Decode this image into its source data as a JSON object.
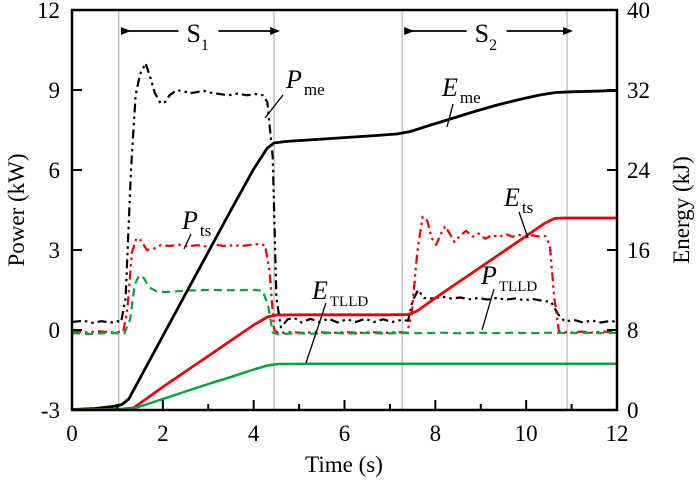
{
  "figure": {
    "xlabel": "Time (s)",
    "ylabel_left": "Power (kW)",
    "ylabel_right": "Energy (kJ)"
  },
  "colors": {
    "black": "#000000",
    "red": "#e8000d",
    "green": "#00a43c",
    "stage_line_gray": "#b5b5b5"
  },
  "chart_data": {
    "type": "line",
    "title": "",
    "xlabel": "Time (s)",
    "ylabel_left": "Power (kW)",
    "ylabel_right": "Energy (kJ)",
    "x_range": [
      0,
      12
    ],
    "power_range": [
      -3,
      12
    ],
    "energy_range": [
      0,
      40
    ],
    "x_ticks": [
      0,
      2,
      4,
      6,
      8,
      10,
      12
    ],
    "x_minor_ticks": [
      1,
      3,
      5,
      7,
      9,
      11
    ],
    "power_ticks": [
      -3,
      0,
      3,
      6,
      9,
      12
    ],
    "energy_ticks": [
      0,
      8,
      16,
      24,
      32,
      40
    ],
    "grid": "vertical-stage-lines-only",
    "legend": "inline-curve-labels",
    "stage_lines_s": [
      1.03,
      4.45,
      7.27,
      10.9
    ],
    "stages": [
      {
        "main": "S",
        "sub": "1",
        "from": 1.03,
        "to": 4.45
      },
      {
        "main": "S",
        "sub": "2",
        "from": 7.27,
        "to": 10.9
      }
    ],
    "series": [
      {
        "id": "pme",
        "name": "P_me",
        "main": "P",
        "sub": "me",
        "axis": "power",
        "color": "#000000",
        "style": "dashdotdot",
        "width": 2.2,
        "points": [
          [
            0,
            0.3
          ],
          [
            0.25,
            0.35
          ],
          [
            0.45,
            0.27
          ],
          [
            0.65,
            0.33
          ],
          [
            0.85,
            0.28
          ],
          [
            1.0,
            0.33
          ],
          [
            1.08,
            0.3
          ],
          [
            1.18,
            1.2
          ],
          [
            1.3,
            6.0
          ],
          [
            1.4,
            8.8
          ],
          [
            1.5,
            9.6
          ],
          [
            1.62,
            10.0
          ],
          [
            1.72,
            9.5
          ],
          [
            1.82,
            8.9
          ],
          [
            1.95,
            8.5
          ],
          [
            2.05,
            8.55
          ],
          [
            2.15,
            8.8
          ],
          [
            2.3,
            9.0
          ],
          [
            2.45,
            8.95
          ],
          [
            2.6,
            8.88
          ],
          [
            2.75,
            8.92
          ],
          [
            2.9,
            8.97
          ],
          [
            3.05,
            8.9
          ],
          [
            3.25,
            8.85
          ],
          [
            3.45,
            8.8
          ],
          [
            3.65,
            8.87
          ],
          [
            3.85,
            8.8
          ],
          [
            4.05,
            8.85
          ],
          [
            4.2,
            8.8
          ],
          [
            4.3,
            8.55
          ],
          [
            4.42,
            6.5
          ],
          [
            4.5,
            1.2
          ],
          [
            4.6,
            0.1
          ],
          [
            4.75,
            0.4
          ],
          [
            4.9,
            0.45
          ],
          [
            5.05,
            0.28
          ],
          [
            5.25,
            0.42
          ],
          [
            5.45,
            0.3
          ],
          [
            5.65,
            0.42
          ],
          [
            5.85,
            0.28
          ],
          [
            6.05,
            0.4
          ],
          [
            6.25,
            0.3
          ],
          [
            6.45,
            0.42
          ],
          [
            6.65,
            0.3
          ],
          [
            6.85,
            0.4
          ],
          [
            7.05,
            0.3
          ],
          [
            7.25,
            0.38
          ],
          [
            7.4,
            0.35
          ],
          [
            7.5,
            1.1
          ],
          [
            7.62,
            1.5
          ],
          [
            7.75,
            1.2
          ],
          [
            7.95,
            1.18
          ],
          [
            8.15,
            1.25
          ],
          [
            8.35,
            1.18
          ],
          [
            8.55,
            1.22
          ],
          [
            8.75,
            1.15
          ],
          [
            8.95,
            1.2
          ],
          [
            9.15,
            1.14
          ],
          [
            9.35,
            1.2
          ],
          [
            9.55,
            1.14
          ],
          [
            9.75,
            1.18
          ],
          [
            9.95,
            1.12
          ],
          [
            10.15,
            1.16
          ],
          [
            10.35,
            1.1
          ],
          [
            10.55,
            1.05
          ],
          [
            10.7,
            0.6
          ],
          [
            10.85,
            0.32
          ],
          [
            11.05,
            0.38
          ],
          [
            11.25,
            0.28
          ],
          [
            11.45,
            0.36
          ],
          [
            11.65,
            0.28
          ],
          [
            11.85,
            0.34
          ],
          [
            12,
            0.3
          ]
        ]
      },
      {
        "id": "pts",
        "name": "P_ts",
        "main": "P",
        "sub": "ts",
        "axis": "power",
        "color": "#e8000d",
        "style": "dashdotdot",
        "width": 2.2,
        "points": [
          [
            0,
            -0.05
          ],
          [
            0.3,
            -0.09
          ],
          [
            0.6,
            -0.05
          ],
          [
            0.9,
            -0.09
          ],
          [
            1.13,
            -0.06
          ],
          [
            1.22,
            0.8
          ],
          [
            1.32,
            2.9
          ],
          [
            1.42,
            3.45
          ],
          [
            1.52,
            3.35
          ],
          [
            1.65,
            3.0
          ],
          [
            1.8,
            3.05
          ],
          [
            1.95,
            3.18
          ],
          [
            2.15,
            3.15
          ],
          [
            2.35,
            3.2
          ],
          [
            2.55,
            3.14
          ],
          [
            2.75,
            3.18
          ],
          [
            2.95,
            3.14
          ],
          [
            3.15,
            3.2
          ],
          [
            3.35,
            3.15
          ],
          [
            3.55,
            3.18
          ],
          [
            3.75,
            3.15
          ],
          [
            3.95,
            3.2
          ],
          [
            4.1,
            3.22
          ],
          [
            4.25,
            3.18
          ],
          [
            4.35,
            2.2
          ],
          [
            4.45,
            0.0
          ],
          [
            4.55,
            -0.12
          ],
          [
            4.8,
            -0.08
          ],
          [
            5.1,
            -0.11
          ],
          [
            5.4,
            -0.08
          ],
          [
            5.7,
            -0.11
          ],
          [
            6.0,
            -0.08
          ],
          [
            6.3,
            -0.11
          ],
          [
            6.6,
            -0.08
          ],
          [
            6.9,
            -0.11
          ],
          [
            7.15,
            -0.08
          ],
          [
            7.38,
            -0.1
          ],
          [
            7.48,
            0.6
          ],
          [
            7.6,
            2.9
          ],
          [
            7.72,
            4.25
          ],
          [
            7.82,
            4.1
          ],
          [
            7.92,
            3.45
          ],
          [
            8.02,
            3.2
          ],
          [
            8.12,
            3.6
          ],
          [
            8.22,
            3.9
          ],
          [
            8.32,
            3.6
          ],
          [
            8.42,
            3.3
          ],
          [
            8.55,
            3.55
          ],
          [
            8.68,
            3.72
          ],
          [
            8.82,
            3.5
          ],
          [
            8.95,
            3.62
          ],
          [
            9.1,
            3.42
          ],
          [
            9.25,
            3.56
          ],
          [
            9.4,
            3.48
          ],
          [
            9.55,
            3.6
          ],
          [
            9.7,
            3.5
          ],
          [
            9.85,
            3.56
          ],
          [
            10.0,
            3.48
          ],
          [
            10.15,
            3.55
          ],
          [
            10.3,
            3.5
          ],
          [
            10.42,
            3.52
          ],
          [
            10.52,
            3.2
          ],
          [
            10.62,
            1.2
          ],
          [
            10.72,
            -0.05
          ],
          [
            10.95,
            -0.1
          ],
          [
            11.2,
            -0.06
          ],
          [
            11.45,
            -0.1
          ],
          [
            11.7,
            -0.06
          ],
          [
            11.95,
            -0.09
          ],
          [
            12,
            -0.08
          ]
        ]
      },
      {
        "id": "ptlld",
        "name": "P_TLLD",
        "main": "P",
        "sub": "TLLD",
        "axis": "power",
        "color": "#00a43c",
        "style": "dashed",
        "width": 2.2,
        "points": [
          [
            0,
            -0.12
          ],
          [
            0.4,
            -0.15
          ],
          [
            0.8,
            -0.11
          ],
          [
            1.15,
            -0.14
          ],
          [
            1.28,
            0.4
          ],
          [
            1.38,
            1.7
          ],
          [
            1.48,
            2.05
          ],
          [
            1.58,
            1.95
          ],
          [
            1.7,
            1.6
          ],
          [
            1.85,
            1.46
          ],
          [
            2.05,
            1.42
          ],
          [
            2.3,
            1.45
          ],
          [
            2.6,
            1.48
          ],
          [
            2.9,
            1.5
          ],
          [
            3.2,
            1.5
          ],
          [
            3.5,
            1.49
          ],
          [
            3.8,
            1.5
          ],
          [
            4.05,
            1.5
          ],
          [
            4.2,
            1.47
          ],
          [
            4.32,
            0.9
          ],
          [
            4.42,
            -0.1
          ],
          [
            4.55,
            -0.16
          ],
          [
            4.9,
            -0.12
          ],
          [
            5.3,
            -0.14
          ],
          [
            5.7,
            -0.11
          ],
          [
            6.1,
            -0.13
          ],
          [
            6.5,
            -0.11
          ],
          [
            6.9,
            -0.13
          ],
          [
            7.3,
            -0.11
          ],
          [
            7.7,
            -0.12
          ],
          [
            8.1,
            -0.1
          ],
          [
            8.5,
            -0.12
          ],
          [
            8.9,
            -0.1
          ],
          [
            9.3,
            -0.12
          ],
          [
            9.7,
            -0.1
          ],
          [
            10.1,
            -0.12
          ],
          [
            10.5,
            -0.1
          ],
          [
            10.9,
            -0.12
          ],
          [
            11.3,
            -0.1
          ],
          [
            11.7,
            -0.12
          ],
          [
            12,
            -0.11
          ]
        ]
      },
      {
        "id": "eme",
        "name": "E_me",
        "main": "E",
        "sub": "me",
        "axis": "energy",
        "color": "#000000",
        "style": "solid",
        "width": 2.8,
        "points": [
          [
            0,
            0.05
          ],
          [
            0.5,
            0.15
          ],
          [
            0.9,
            0.35
          ],
          [
            1.1,
            0.55
          ],
          [
            1.25,
            1.1
          ],
          [
            1.5,
            3.2
          ],
          [
            2.0,
            7.4
          ],
          [
            2.5,
            11.6
          ],
          [
            3.0,
            15.8
          ],
          [
            3.5,
            20.0
          ],
          [
            4.0,
            24.1
          ],
          [
            4.3,
            26.2
          ],
          [
            4.45,
            26.7
          ],
          [
            4.7,
            26.85
          ],
          [
            5.2,
            27.0
          ],
          [
            5.7,
            27.15
          ],
          [
            6.2,
            27.3
          ],
          [
            6.7,
            27.45
          ],
          [
            7.15,
            27.6
          ],
          [
            7.45,
            27.85
          ],
          [
            7.9,
            28.5
          ],
          [
            8.4,
            29.2
          ],
          [
            8.9,
            29.9
          ],
          [
            9.4,
            30.55
          ],
          [
            9.9,
            31.1
          ],
          [
            10.3,
            31.5
          ],
          [
            10.65,
            31.75
          ],
          [
            11.0,
            31.82
          ],
          [
            11.5,
            31.88
          ],
          [
            12,
            31.95
          ]
        ]
      },
      {
        "id": "ets",
        "name": "E_ts",
        "main": "E",
        "sub": "ts",
        "axis": "energy",
        "color": "#e8000d",
        "style": "solid",
        "width": 2.8,
        "points": [
          [
            0,
            0.02
          ],
          [
            0.6,
            0.05
          ],
          [
            1.1,
            0.1
          ],
          [
            1.35,
            0.2
          ],
          [
            1.6,
            1.0
          ],
          [
            2.0,
            2.3
          ],
          [
            2.5,
            3.85
          ],
          [
            3.0,
            5.4
          ],
          [
            3.5,
            6.95
          ],
          [
            4.0,
            8.5
          ],
          [
            4.3,
            9.3
          ],
          [
            4.5,
            9.5
          ],
          [
            5.0,
            9.52
          ],
          [
            5.5,
            9.52
          ],
          [
            6.0,
            9.52
          ],
          [
            6.5,
            9.52
          ],
          [
            7.0,
            9.52
          ],
          [
            7.4,
            9.55
          ],
          [
            7.6,
            9.9
          ],
          [
            8.0,
            11.2
          ],
          [
            8.5,
            12.75
          ],
          [
            9.0,
            14.3
          ],
          [
            9.5,
            15.85
          ],
          [
            10.0,
            17.4
          ],
          [
            10.4,
            18.65
          ],
          [
            10.62,
            19.15
          ],
          [
            10.8,
            19.2
          ],
          [
            11.2,
            19.2
          ],
          [
            11.6,
            19.2
          ],
          [
            12,
            19.2
          ]
        ]
      },
      {
        "id": "etlld",
        "name": "E_TLLD",
        "main": "E",
        "sub": "TLLD",
        "axis": "energy",
        "color": "#00a43c",
        "style": "solid",
        "width": 2.5,
        "points": [
          [
            0,
            0.02
          ],
          [
            0.6,
            0.04
          ],
          [
            1.1,
            0.08
          ],
          [
            1.35,
            0.15
          ],
          [
            1.6,
            0.5
          ],
          [
            2.0,
            1.1
          ],
          [
            2.5,
            1.85
          ],
          [
            3.0,
            2.6
          ],
          [
            3.5,
            3.3
          ],
          [
            4.0,
            4.05
          ],
          [
            4.3,
            4.45
          ],
          [
            4.55,
            4.6
          ],
          [
            5.5,
            4.62
          ],
          [
            6.5,
            4.62
          ],
          [
            7.5,
            4.62
          ],
          [
            8.5,
            4.62
          ],
          [
            9.5,
            4.62
          ],
          [
            10.5,
            4.62
          ],
          [
            11.5,
            4.62
          ],
          [
            12,
            4.62
          ]
        ]
      }
    ],
    "annotations": [
      {
        "id": "pme",
        "main": "P",
        "sub": "me",
        "x": 286,
        "y": 88,
        "leader": [
          [
            283,
            95
          ],
          [
            265,
            118
          ]
        ]
      },
      {
        "id": "eme",
        "main": "E",
        "sub": "me",
        "x": 442,
        "y": 96,
        "leader": [
          [
            453,
            104
          ],
          [
            447,
            127
          ]
        ]
      },
      {
        "id": "pts",
        "main": "P",
        "sub": "ts",
        "x": 182,
        "y": 229,
        "leader": [
          [
            191,
            234
          ],
          [
            184,
            249
          ]
        ]
      },
      {
        "id": "ets",
        "main": "E",
        "sub": "ts",
        "x": 504,
        "y": 206,
        "leader": [
          [
            519,
            212
          ],
          [
            528,
            238
          ]
        ]
      },
      {
        "id": "ptlld",
        "main": "P",
        "sub": "TLLD",
        "x": 481,
        "y": 284,
        "leader": [
          [
            494,
            289
          ],
          [
            482,
            330
          ]
        ]
      },
      {
        "id": "etlld",
        "main": "E",
        "sub": "TLLD",
        "x": 312,
        "y": 299,
        "leader": [
          [
            326,
            303
          ],
          [
            306,
            363
          ]
        ]
      }
    ]
  }
}
